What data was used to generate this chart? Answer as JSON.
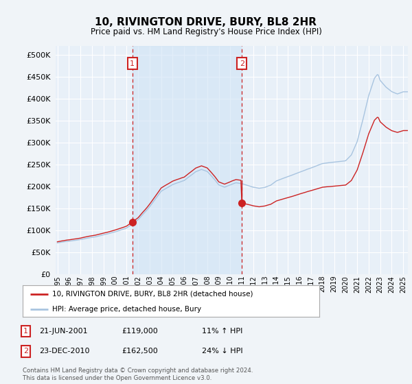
{
  "title": "10, RIVINGTON DRIVE, BURY, BL8 2HR",
  "subtitle": "Price paid vs. HM Land Registry's House Price Index (HPI)",
  "ytick_values": [
    0,
    50000,
    100000,
    150000,
    200000,
    250000,
    300000,
    350000,
    400000,
    450000,
    500000
  ],
  "ylim": [
    0,
    520000
  ],
  "hpi_color": "#a8c4e0",
  "hpi_fill_color": "#d0e4f5",
  "price_color": "#cc2222",
  "marker1_date_idx": 78,
  "marker2_date_idx": 192,
  "marker1_price": 119000,
  "marker2_price": 162500,
  "vline_color": "#cc2222",
  "bg_color": "#f0f4f8",
  "plot_bg": "#e8f0f8",
  "grid_color": "#c8d8e8",
  "footnote": "Contains HM Land Registry data © Crown copyright and database right 2024.\nThis data is licensed under the Open Government Licence v3.0.",
  "table_rows": [
    [
      "1",
      "21-JUN-2001",
      "£119,000",
      "11% ↑ HPI"
    ],
    [
      "2",
      "23-DEC-2010",
      "£162,500",
      "24% ↓ HPI"
    ]
  ],
  "xstart_year": 1995,
  "xend_year": 2025
}
